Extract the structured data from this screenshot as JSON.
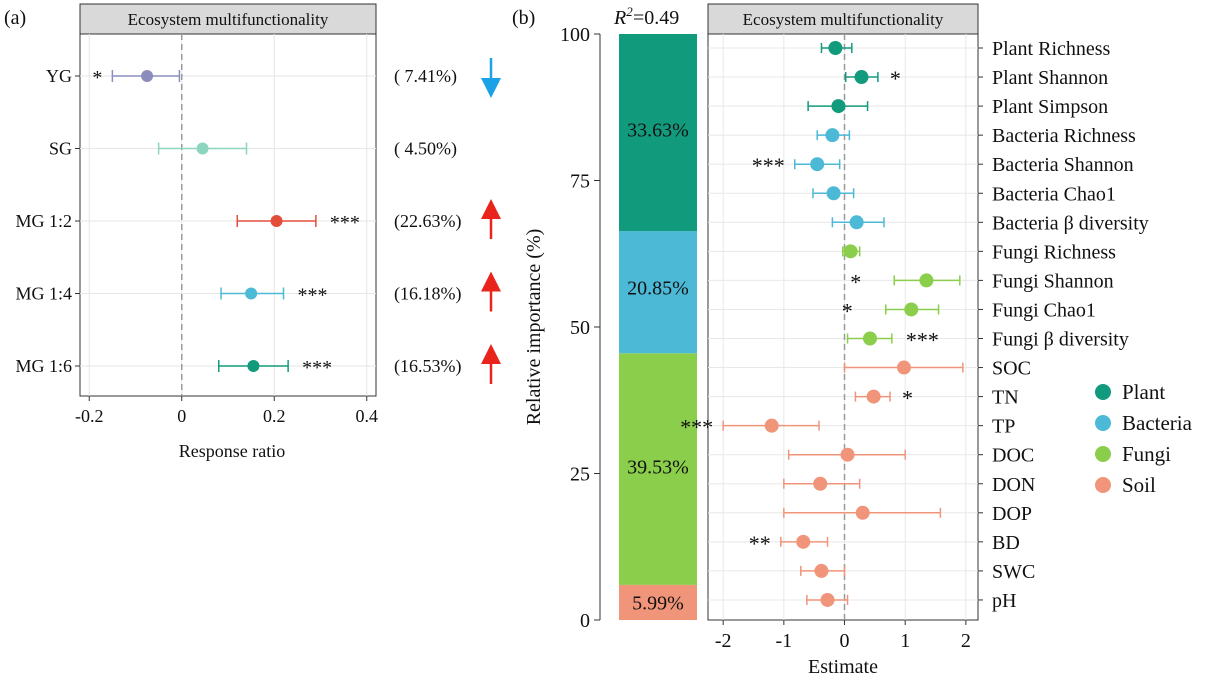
{
  "panel_a": {
    "label": "(a)",
    "strip_title": "Ecosystem multifunctionality",
    "xlabel": "Response ratio",
    "xticks": [
      "-0.2",
      "0",
      "0.2",
      "0.4"
    ],
    "colors": {
      "YG": "#8C8DBD",
      "SG": "#8DD5BE",
      "MG 1:2": "#E34E3B",
      "MG 1:4": "#4CB9D6",
      "MG 1:6": "#129A7D"
    },
    "arrow_colors": {
      "down": "#1AA1E6",
      "up": "#E8241C"
    }
  },
  "panel_b": {
    "label": "(b)",
    "r2_text": "=0.49",
    "bar_ylabel": "Relative importance (%)",
    "bar_yticks": [
      "0",
      "25",
      "50",
      "75",
      "100"
    ],
    "strip_title": "Ecosystem multifunctionality",
    "xlabel": "Estimate",
    "xticks": [
      "-2",
      "-1",
      "0",
      "1",
      "2"
    ],
    "legend": [
      {
        "name": "Plant",
        "color": "#129A7D"
      },
      {
        "name": "Bacteria",
        "color": "#4CB9D6"
      },
      {
        "name": "Fungi",
        "color": "#8ACE4B"
      },
      {
        "name": "Soil",
        "color": "#F0947A"
      }
    ]
  },
  "chart_data": [
    {
      "type": "scatter",
      "title": "Ecosystem multifunctionality",
      "xlabel": "Response ratio",
      "xlim": [
        -0.22,
        0.42
      ],
      "categories": [
        "YG",
        "SG",
        "MG 1:2",
        "MG 1:4",
        "MG 1:6"
      ],
      "values": [
        -0.075,
        0.045,
        0.205,
        0.15,
        0.155
      ],
      "ci_low": [
        -0.15,
        -0.05,
        0.12,
        0.085,
        0.08
      ],
      "ci_high": [
        -0.005,
        0.14,
        0.29,
        0.22,
        0.23
      ],
      "significance": [
        "*",
        "",
        "***",
        "***",
        "***"
      ],
      "percent_labels": [
        "( 7.41%)",
        "( 4.50%)",
        "(22.63%)",
        "(16.18%)",
        "(16.53%)"
      ],
      "arrows": [
        "down",
        "",
        "up",
        "up",
        "up"
      ],
      "grid": true
    },
    {
      "type": "bar",
      "ylabel": "Relative importance (%)",
      "ylim": [
        0,
        100
      ],
      "stacked": true,
      "r2": 0.49,
      "categories": [
        "Soil",
        "Fungi",
        "Bacteria",
        "Plant"
      ],
      "values": [
        5.99,
        39.53,
        20.85,
        33.63
      ],
      "labels": [
        "5.99%",
        "39.53%",
        "20.85%",
        "33.63%"
      ],
      "colors": [
        "#F0947A",
        "#8ACE4B",
        "#4CB9D6",
        "#129A7D"
      ]
    },
    {
      "type": "scatter",
      "title": "Ecosystem multifunctionality",
      "xlabel": "Estimate",
      "xlim": [
        -2.25,
        2.2
      ],
      "grid": true,
      "legend_position": "right",
      "points": [
        {
          "name": "Plant Richness",
          "group": "Plant",
          "value": -0.15,
          "low": -0.38,
          "high": 0.12,
          "sig": ""
        },
        {
          "name": "Plant Shannon",
          "group": "Plant",
          "value": 0.28,
          "low": 0.02,
          "high": 0.55,
          "sig": "*"
        },
        {
          "name": "Plant Simpson",
          "group": "Plant",
          "value": -0.1,
          "low": -0.6,
          "high": 0.38,
          "sig": ""
        },
        {
          "name": "Bacteria Richness",
          "group": "Bacteria",
          "value": -0.2,
          "low": -0.45,
          "high": 0.08,
          "sig": ""
        },
        {
          "name": "Bacteria Shannon",
          "group": "Bacteria",
          "value": -0.45,
          "low": -0.82,
          "high": -0.08,
          "sig": "***"
        },
        {
          "name": "Bacteria Chao1",
          "group": "Bacteria",
          "value": -0.18,
          "low": -0.52,
          "high": 0.15,
          "sig": ""
        },
        {
          "name": "Bacteria β diversity",
          "group": "Bacteria",
          "value": 0.2,
          "low": -0.2,
          "high": 0.65,
          "sig": ""
        },
        {
          "name": "Fungi Richness",
          "group": "Fungi",
          "value": 0.1,
          "low": -0.03,
          "high": 0.25,
          "sig": ""
        },
        {
          "name": "Fungi Shannon",
          "group": "Fungi",
          "value": 1.35,
          "low": 0.82,
          "high": 1.9,
          "sig": "*"
        },
        {
          "name": "Fungi Chao1",
          "group": "Fungi",
          "value": 1.1,
          "low": 0.68,
          "high": 1.55,
          "sig": "*"
        },
        {
          "name": "Fungi β diversity",
          "group": "Fungi",
          "value": 0.42,
          "low": 0.05,
          "high": 0.78,
          "sig": "***"
        },
        {
          "name": "SOC",
          "group": "Soil",
          "value": 0.98,
          "low": 0.0,
          "high": 1.95,
          "sig": ""
        },
        {
          "name": "TN",
          "group": "Soil",
          "value": 0.48,
          "low": 0.18,
          "high": 0.75,
          "sig": "*"
        },
        {
          "name": "TP",
          "group": "Soil",
          "value": -1.2,
          "low": -2.0,
          "high": -0.42,
          "sig": "***"
        },
        {
          "name": "DOC",
          "group": "Soil",
          "value": 0.05,
          "low": -0.92,
          "high": 1.0,
          "sig": ""
        },
        {
          "name": "DON",
          "group": "Soil",
          "value": -0.4,
          "low": -1.0,
          "high": 0.25,
          "sig": ""
        },
        {
          "name": "DOP",
          "group": "Soil",
          "value": 0.3,
          "low": -1.0,
          "high": 1.58,
          "sig": ""
        },
        {
          "name": "BD",
          "group": "Soil",
          "value": -0.68,
          "low": -1.05,
          "high": -0.28,
          "sig": "**"
        },
        {
          "name": "SWC",
          "group": "Soil",
          "value": -0.38,
          "low": -0.72,
          "high": 0.0,
          "sig": ""
        },
        {
          "name": "pH",
          "group": "Soil",
          "value": -0.28,
          "low": -0.62,
          "high": 0.05,
          "sig": ""
        }
      ]
    }
  ]
}
